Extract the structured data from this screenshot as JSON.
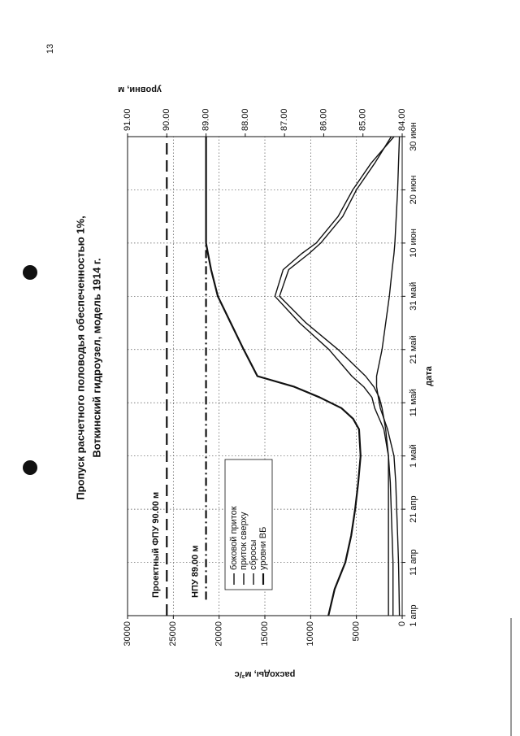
{
  "page_number": "13",
  "chart_data": {
    "type": "line",
    "title": "Пропуск расчетного половодья обеспеченностью 1%,",
    "subtitle": "Воткинский гидроузел, модель 1914 г.",
    "x_label": "дата",
    "y_label": "расходы, м³/с",
    "y2_label": "уровни, м",
    "x": [
      "04-01",
      "04-06",
      "04-11",
      "04-16",
      "04-21",
      "04-26",
      "05-01",
      "05-06",
      "05-08",
      "05-10",
      "05-12",
      "05-14",
      "05-16",
      "05-21",
      "05-26",
      "05-31",
      "06-05",
      "06-08",
      "06-10",
      "06-15",
      "06-20",
      "06-25",
      "06-30"
    ],
    "xlim": [
      "04-01",
      "06-30"
    ],
    "xticks": [
      {
        "value": "04-01",
        "label": "1 апр"
      },
      {
        "value": "04-11",
        "label": "11 апр"
      },
      {
        "value": "04-21",
        "label": "21 апр"
      },
      {
        "value": "05-01",
        "label": "1 май"
      },
      {
        "value": "05-11",
        "label": "11 май"
      },
      {
        "value": "05-21",
        "label": "21 май"
      },
      {
        "value": "05-31",
        "label": "31 май"
      },
      {
        "value": "06-10",
        "label": "10 июн"
      },
      {
        "value": "06-20",
        "label": "20 июн"
      },
      {
        "value": "06-30",
        "label": "30 июн"
      }
    ],
    "ylim": [
      0,
      30000
    ],
    "yticks": [
      0,
      5000,
      10000,
      15000,
      20000,
      25000,
      30000
    ],
    "y2lim": [
      84,
      91
    ],
    "y2ticks": [
      {
        "value": 84,
        "label": "84.00"
      },
      {
        "value": 85,
        "label": "85.00"
      },
      {
        "value": 86,
        "label": "86.00"
      },
      {
        "value": 87,
        "label": "87.00"
      },
      {
        "value": 88,
        "label": "88.00"
      },
      {
        "value": 89,
        "label": "89.00"
      },
      {
        "value": 90,
        "label": "90.00"
      },
      {
        "value": 91,
        "label": "91.00"
      }
    ],
    "grid": true,
    "legend": "bottom-left",
    "series": [
      {
        "name": "боковой приток",
        "color": "#111111",
        "values": [
          300,
          350,
          400,
          500,
          600,
          700,
          900,
          1600,
          2000,
          2400,
          2600,
          2800,
          2800,
          2200,
          1800,
          1400,
          1100,
          900,
          800,
          650,
          500,
          400,
          300
        ]
      },
      {
        "name": "приток сверху",
        "color": "#111111",
        "values": [
          1000,
          1000,
          1000,
          1100,
          1200,
          1300,
          1500,
          2000,
          2500,
          3000,
          3300,
          4200,
          5500,
          8000,
          11200,
          13900,
          13000,
          11000,
          9400,
          7000,
          5400,
          3400,
          900
        ]
      },
      {
        "name": "сбросы",
        "color": "#111111",
        "values": [
          1500,
          1500,
          1500,
          1500,
          1500,
          1500,
          1500,
          1800,
          2000,
          2200,
          2500,
          3100,
          4000,
          7000,
          10500,
          13400,
          12400,
          10200,
          8900,
          6500,
          5000,
          3000,
          1200
        ]
      },
      {
        "name": "уровни ВБ",
        "color": "#111111",
        "axis": "y2",
        "values": [
          85.88,
          85.72,
          85.45,
          85.3,
          85.2,
          85.12,
          85.06,
          85.1,
          85.25,
          85.55,
          86.1,
          86.75,
          87.69,
          88.04,
          88.37,
          88.7,
          88.87,
          88.95,
          89.0,
          89.0,
          89.0,
          89.0,
          89.0
        ]
      }
    ],
    "reference_lines": [
      {
        "label": "Проектный ФПУ 90.00 м",
        "value": 90,
        "axis": "y2",
        "from": "04-01",
        "to": "06-30",
        "style": "dashed"
      },
      {
        "label": "НПУ 89.00 м",
        "value": 89,
        "axis": "y2",
        "from": "04-04",
        "to": "06-10",
        "style": "dashdot"
      }
    ]
  }
}
